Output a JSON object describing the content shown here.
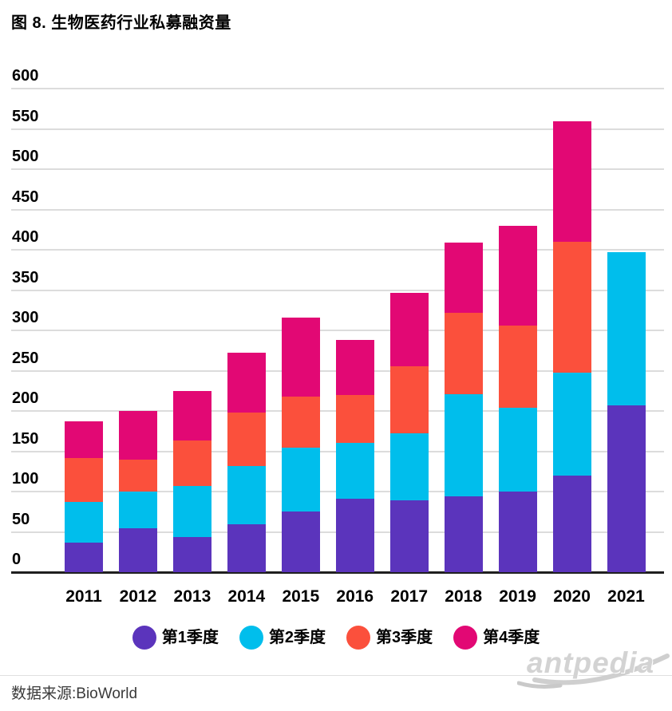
{
  "title": "图 8. 生物医药行业私募融资量",
  "source": "数据来源:BioWorld",
  "watermark": "antpedia",
  "colors": {
    "q1_purple": "#5B34BC",
    "q2_cyan": "#00BEEC",
    "q3_orange": "#FB503C",
    "q4_magenta": "#E20874",
    "gridline": "#DCDCDC",
    "axis_line": "#1F1F1F",
    "text": "#000000",
    "source_text": "#3A3A3A",
    "watermark_gray": "#D3D3D3"
  },
  "chart_data": {
    "type": "bar",
    "stacked": true,
    "title": "图 8. 生物医药行业私募融资量",
    "categories": [
      "2011",
      "2012",
      "2013",
      "2014",
      "2015",
      "2016",
      "2017",
      "2018",
      "2019",
      "2020",
      "2021"
    ],
    "series": [
      {
        "name": "第1季度",
        "color": "#5B34BC",
        "values": [
          37,
          54,
          44,
          59,
          75,
          91,
          89,
          94,
          100,
          120,
          207
        ]
      },
      {
        "name": "第2季度",
        "color": "#00BEEC",
        "values": [
          50,
          46,
          63,
          73,
          79,
          69,
          83,
          127,
          104,
          128,
          190
        ]
      },
      {
        "name": "第3季度",
        "color": "#FB503C",
        "values": [
          55,
          40,
          56,
          66,
          64,
          60,
          83,
          101,
          102,
          162,
          0
        ]
      },
      {
        "name": "第4季度",
        "color": "#E20874",
        "values": [
          45,
          60,
          62,
          74,
          98,
          68,
          92,
          87,
          124,
          149,
          0
        ]
      }
    ],
    "totals": [
      187,
      200,
      225,
      272,
      316,
      288,
      347,
      409,
      430,
      559,
      397
    ],
    "xlabel": "",
    "ylabel": "",
    "ylim": [
      0,
      600
    ],
    "ytick_step": 50,
    "yticks": [
      0,
      50,
      100,
      150,
      200,
      250,
      300,
      350,
      400,
      450,
      500,
      550,
      600
    ],
    "grid": true,
    "legend_position": "bottom"
  }
}
